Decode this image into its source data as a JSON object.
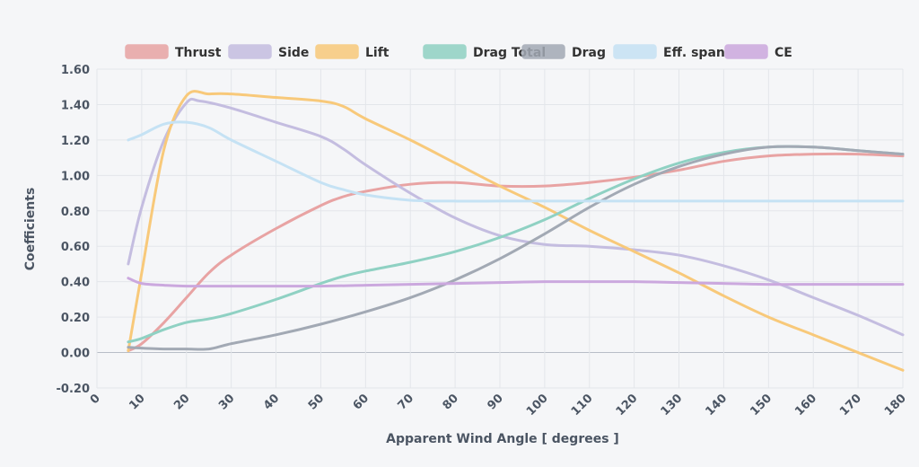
{
  "chart_data": {
    "type": "line",
    "xlabel": "Apparent Wind Angle [ degrees ]",
    "ylabel": "Coefficients",
    "xlim": [
      0,
      180
    ],
    "ylim": [
      -0.2,
      1.6
    ],
    "x_ticks": [
      "0",
      "10",
      "20",
      "30",
      "40",
      "50",
      "60",
      "70",
      "80",
      "90",
      "100",
      "110",
      "120",
      "130",
      "140",
      "150",
      "160",
      "170",
      "180"
    ],
    "y_ticks": [
      "-0.20",
      "0.00",
      "0.20",
      "0.40",
      "0.60",
      "0.80",
      "1.00",
      "1.20",
      "1.40",
      "1.60"
    ],
    "grid": true,
    "legend_position": "top",
    "series": [
      {
        "name": "Thrust",
        "color": "#e8a3a3",
        "points": [
          [
            7,
            0.01
          ],
          [
            10,
            0.05
          ],
          [
            15,
            0.17
          ],
          [
            20,
            0.31
          ],
          [
            25,
            0.45
          ],
          [
            30,
            0.55
          ],
          [
            40,
            0.7
          ],
          [
            50,
            0.83
          ],
          [
            55,
            0.88
          ],
          [
            60,
            0.91
          ],
          [
            70,
            0.95
          ],
          [
            80,
            0.96
          ],
          [
            90,
            0.94
          ],
          [
            100,
            0.94
          ],
          [
            110,
            0.96
          ],
          [
            120,
            0.99
          ],
          [
            130,
            1.03
          ],
          [
            140,
            1.08
          ],
          [
            150,
            1.11
          ],
          [
            160,
            1.12
          ],
          [
            170,
            1.12
          ],
          [
            180,
            1.11
          ]
        ]
      },
      {
        "name": "Side",
        "color": "#c4bde0",
        "points": [
          [
            7,
            0.5
          ],
          [
            10,
            0.82
          ],
          [
            15,
            1.2
          ],
          [
            20,
            1.41
          ],
          [
            23,
            1.42
          ],
          [
            30,
            1.38
          ],
          [
            40,
            1.3
          ],
          [
            50,
            1.22
          ],
          [
            55,
            1.15
          ],
          [
            60,
            1.06
          ],
          [
            70,
            0.9
          ],
          [
            80,
            0.76
          ],
          [
            90,
            0.66
          ],
          [
            100,
            0.61
          ],
          [
            110,
            0.6
          ],
          [
            120,
            0.58
          ],
          [
            130,
            0.55
          ],
          [
            140,
            0.49
          ],
          [
            150,
            0.41
          ],
          [
            160,
            0.31
          ],
          [
            170,
            0.21
          ],
          [
            180,
            0.1
          ]
        ]
      },
      {
        "name": "Lift",
        "color": "#f8c97a",
        "points": [
          [
            7,
            0.01
          ],
          [
            10,
            0.45
          ],
          [
            15,
            1.15
          ],
          [
            20,
            1.45
          ],
          [
            25,
            1.46
          ],
          [
            30,
            1.46
          ],
          [
            40,
            1.44
          ],
          [
            50,
            1.42
          ],
          [
            55,
            1.39
          ],
          [
            60,
            1.32
          ],
          [
            70,
            1.2
          ],
          [
            80,
            1.07
          ],
          [
            90,
            0.94
          ],
          [
            100,
            0.82
          ],
          [
            110,
            0.69
          ],
          [
            120,
            0.57
          ],
          [
            130,
            0.45
          ],
          [
            140,
            0.32
          ],
          [
            150,
            0.2
          ],
          [
            160,
            0.1
          ],
          [
            170,
            0.0
          ],
          [
            180,
            -0.1
          ]
        ]
      },
      {
        "name": "Drag Total",
        "color": "#8fd1c3",
        "points": [
          [
            7,
            0.06
          ],
          [
            10,
            0.08
          ],
          [
            15,
            0.13
          ],
          [
            20,
            0.17
          ],
          [
            25,
            0.19
          ],
          [
            30,
            0.22
          ],
          [
            40,
            0.3
          ],
          [
            50,
            0.39
          ],
          [
            55,
            0.43
          ],
          [
            60,
            0.46
          ],
          [
            70,
            0.51
          ],
          [
            80,
            0.57
          ],
          [
            90,
            0.65
          ],
          [
            100,
            0.75
          ],
          [
            110,
            0.87
          ],
          [
            120,
            0.98
          ],
          [
            130,
            1.07
          ],
          [
            140,
            1.13
          ],
          [
            150,
            1.16
          ],
          [
            160,
            1.16
          ],
          [
            170,
            1.14
          ],
          [
            180,
            1.12
          ]
        ]
      },
      {
        "name": "Drag",
        "color": "#a2a9b4",
        "points": [
          [
            7,
            0.03
          ],
          [
            10,
            0.025
          ],
          [
            15,
            0.02
          ],
          [
            20,
            0.02
          ],
          [
            25,
            0.02
          ],
          [
            30,
            0.05
          ],
          [
            40,
            0.1
          ],
          [
            50,
            0.16
          ],
          [
            60,
            0.23
          ],
          [
            70,
            0.31
          ],
          [
            80,
            0.41
          ],
          [
            90,
            0.53
          ],
          [
            100,
            0.67
          ],
          [
            110,
            0.82
          ],
          [
            120,
            0.95
          ],
          [
            130,
            1.05
          ],
          [
            140,
            1.12
          ],
          [
            150,
            1.16
          ],
          [
            160,
            1.16
          ],
          [
            170,
            1.14
          ],
          [
            180,
            1.12
          ]
        ]
      },
      {
        "name": "Eff. span",
        "color": "#c5e2f4",
        "points": [
          [
            7,
            1.2
          ],
          [
            10,
            1.23
          ],
          [
            15,
            1.29
          ],
          [
            20,
            1.3
          ],
          [
            25,
            1.27
          ],
          [
            30,
            1.2
          ],
          [
            40,
            1.08
          ],
          [
            50,
            0.96
          ],
          [
            55,
            0.92
          ],
          [
            60,
            0.89
          ],
          [
            70,
            0.86
          ],
          [
            80,
            0.855
          ],
          [
            90,
            0.855
          ],
          [
            100,
            0.855
          ],
          [
            120,
            0.855
          ],
          [
            140,
            0.855
          ],
          [
            160,
            0.855
          ],
          [
            180,
            0.855
          ]
        ]
      },
      {
        "name": "CE",
        "color": "#cba8de",
        "points": [
          [
            7,
            0.42
          ],
          [
            10,
            0.39
          ],
          [
            15,
            0.38
          ],
          [
            20,
            0.375
          ],
          [
            30,
            0.375
          ],
          [
            40,
            0.375
          ],
          [
            50,
            0.375
          ],
          [
            60,
            0.38
          ],
          [
            70,
            0.385
          ],
          [
            80,
            0.39
          ],
          [
            90,
            0.395
          ],
          [
            100,
            0.4
          ],
          [
            110,
            0.4
          ],
          [
            120,
            0.4
          ],
          [
            130,
            0.395
          ],
          [
            140,
            0.39
          ],
          [
            150,
            0.385
          ],
          [
            160,
            0.385
          ],
          [
            170,
            0.385
          ],
          [
            180,
            0.385
          ]
        ]
      }
    ]
  }
}
